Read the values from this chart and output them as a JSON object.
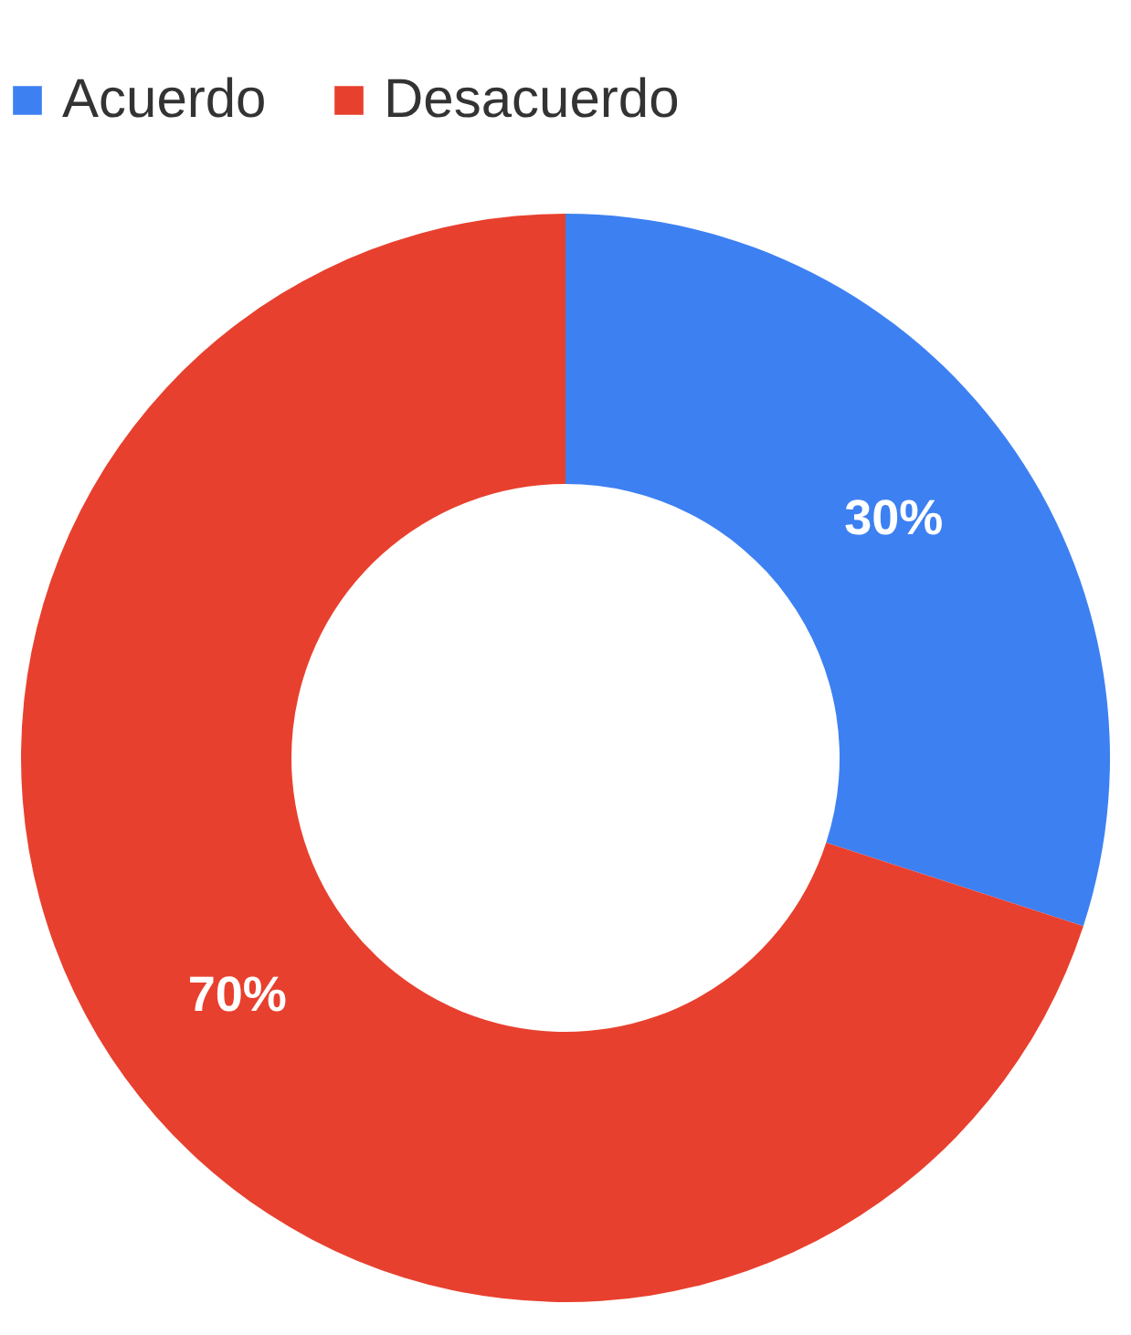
{
  "chart_data": {
    "type": "donut",
    "categories": [
      "Acuerdo",
      "Desacuerdo"
    ],
    "values": [
      30,
      70
    ],
    "colors": [
      "#3d80f2",
      "#e8402e"
    ],
    "value_labels": [
      "30%",
      "70%"
    ],
    "legend": "top"
  }
}
